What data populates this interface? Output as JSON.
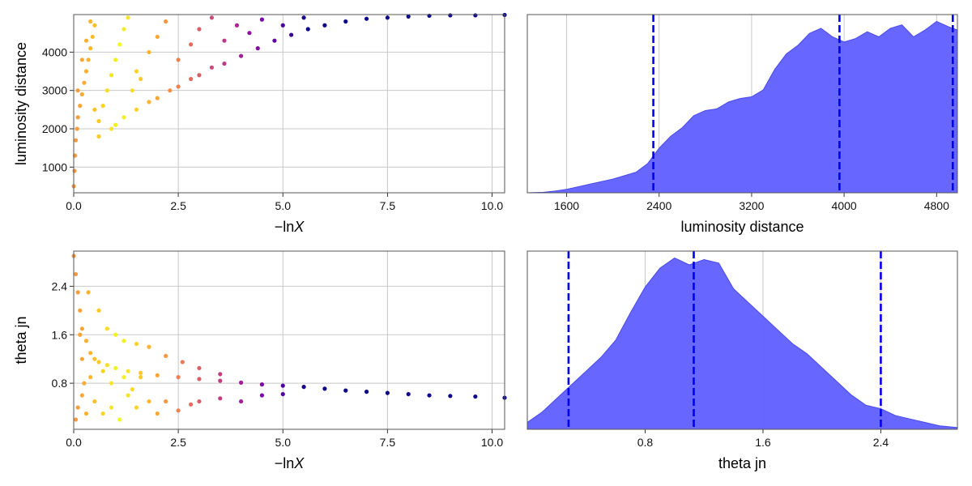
{
  "chart_data": [
    {
      "type": "scatter",
      "panel": "top-left",
      "xlabel": "−ln",
      "xlabel_var": "X",
      "ylabel": "luminosity distance",
      "xlim": [
        0,
        10.3
      ],
      "ylim": [
        330,
        4980
      ],
      "xticks": [
        0.0,
        2.5,
        5.0,
        7.5,
        10.0
      ],
      "xtick_labels": [
        "0.0",
        "2.5",
        "5.0",
        "7.5",
        "10.0"
      ],
      "yticks": [
        1000,
        2000,
        3000,
        4000
      ],
      "ytick_labels": [
        "1000",
        "2000",
        "3000",
        "4000"
      ],
      "grid": true,
      "colormap": "plasma",
      "points": [
        [
          0.0,
          500
        ],
        [
          0.02,
          900
        ],
        [
          0.03,
          1300
        ],
        [
          0.05,
          1700
        ],
        [
          0.08,
          2000
        ],
        [
          0.1,
          2300
        ],
        [
          0.15,
          2600
        ],
        [
          0.2,
          2900
        ],
        [
          0.25,
          3200
        ],
        [
          0.3,
          3500
        ],
        [
          0.35,
          3800
        ],
        [
          0.4,
          4100
        ],
        [
          0.45,
          4400
        ],
        [
          0.5,
          4700
        ],
        [
          0.1,
          3000
        ],
        [
          0.2,
          3800
        ],
        [
          0.3,
          4300
        ],
        [
          0.4,
          4800
        ],
        [
          0.6,
          2200
        ],
        [
          0.7,
          2600
        ],
        [
          0.8,
          3000
        ],
        [
          0.9,
          3400
        ],
        [
          1.0,
          3800
        ],
        [
          1.1,
          4200
        ],
        [
          1.2,
          4600
        ],
        [
          1.3,
          4900
        ],
        [
          0.9,
          2000
        ],
        [
          1.0,
          2100
        ],
        [
          1.2,
          2300
        ],
        [
          1.5,
          2500
        ],
        [
          1.8,
          2700
        ],
        [
          2.0,
          2800
        ],
        [
          2.3,
          3000
        ],
        [
          2.5,
          3100
        ],
        [
          2.8,
          3300
        ],
        [
          3.0,
          3400
        ],
        [
          3.3,
          3600
        ],
        [
          3.6,
          3700
        ],
        [
          4.0,
          3900
        ],
        [
          4.4,
          4100
        ],
        [
          4.8,
          4300
        ],
        [
          5.2,
          4450
        ],
        [
          5.6,
          4600
        ],
        [
          6.0,
          4700
        ],
        [
          6.5,
          4800
        ],
        [
          7.0,
          4870
        ],
        [
          7.5,
          4900
        ],
        [
          8.0,
          4930
        ],
        [
          8.5,
          4950
        ],
        [
          9.0,
          4960
        ],
        [
          9.6,
          4960
        ],
        [
          10.3,
          4970
        ],
        [
          1.5,
          3500
        ],
        [
          1.8,
          4000
        ],
        [
          2.0,
          4400
        ],
        [
          2.2,
          4800
        ],
        [
          2.5,
          3800
        ],
        [
          2.8,
          4200
        ],
        [
          3.0,
          4600
        ],
        [
          3.3,
          4900
        ],
        [
          3.6,
          4300
        ],
        [
          3.9,
          4700
        ],
        [
          4.2,
          4500
        ],
        [
          4.5,
          4850
        ],
        [
          5.0,
          4700
        ],
        [
          5.5,
          4900
        ],
        [
          1.4,
          3000
        ],
        [
          1.6,
          3300
        ],
        [
          0.6,
          1800
        ],
        [
          0.5,
          2500
        ]
      ]
    },
    {
      "type": "area",
      "panel": "top-right",
      "xlabel": "luminosity distance",
      "xlim": [
        1260,
        4980
      ],
      "ylim": [
        0,
        1.04
      ],
      "xticks": [
        1600,
        2400,
        3200,
        4000,
        4800
      ],
      "xtick_labels": [
        "1600",
        "2400",
        "3200",
        "4000",
        "4800"
      ],
      "grid": true,
      "fill_color": "#6464ff",
      "quantile_lines": [
        2350,
        3960,
        4940
      ],
      "quantile_color": "#0000ee",
      "x": [
        1260,
        1400,
        1500,
        1600,
        1700,
        1800,
        1900,
        2000,
        2100,
        2200,
        2300,
        2400,
        2500,
        2600,
        2700,
        2800,
        2900,
        3000,
        3100,
        3200,
        3300,
        3400,
        3500,
        3600,
        3700,
        3800,
        3900,
        4000,
        4100,
        4200,
        4300,
        4400,
        4500,
        4600,
        4700,
        4800,
        4900,
        4980
      ],
      "y": [
        0.0,
        0.003,
        0.01,
        0.02,
        0.035,
        0.05,
        0.065,
        0.08,
        0.1,
        0.12,
        0.17,
        0.26,
        0.33,
        0.38,
        0.45,
        0.48,
        0.49,
        0.53,
        0.55,
        0.56,
        0.6,
        0.72,
        0.81,
        0.86,
        0.93,
        0.96,
        0.91,
        0.88,
        0.9,
        0.94,
        0.91,
        0.96,
        0.98,
        0.91,
        0.95,
        1.0,
        0.97,
        0.95
      ]
    },
    {
      "type": "scatter",
      "panel": "bottom-left",
      "xlabel": "−ln",
      "xlabel_var": "X",
      "ylabel": "theta jn",
      "xlim": [
        0,
        10.3
      ],
      "ylim": [
        0.04,
        2.98
      ],
      "xticks": [
        0.0,
        2.5,
        5.0,
        7.5,
        10.0
      ],
      "xtick_labels": [
        "0.0",
        "2.5",
        "5.0",
        "7.5",
        "10.0"
      ],
      "yticks": [
        0.8,
        1.6,
        2.4
      ],
      "ytick_labels": [
        "0.8",
        "1.6",
        "2.4"
      ],
      "grid": true,
      "colormap": "plasma",
      "points": [
        [
          0.0,
          2.9
        ],
        [
          0.05,
          2.6
        ],
        [
          0.1,
          2.3
        ],
        [
          0.15,
          2.0
        ],
        [
          0.2,
          1.7
        ],
        [
          0.3,
          1.5
        ],
        [
          0.4,
          1.3
        ],
        [
          0.5,
          1.2
        ],
        [
          0.6,
          1.15
        ],
        [
          0.8,
          1.1
        ],
        [
          1.0,
          1.05
        ],
        [
          1.3,
          1.0
        ],
        [
          1.6,
          0.97
        ],
        [
          2.0,
          0.93
        ],
        [
          2.5,
          0.9
        ],
        [
          3.0,
          0.87
        ],
        [
          3.5,
          0.84
        ],
        [
          4.0,
          0.81
        ],
        [
          4.5,
          0.78
        ],
        [
          5.0,
          0.76
        ],
        [
          5.5,
          0.74
        ],
        [
          6.0,
          0.71
        ],
        [
          6.5,
          0.68
        ],
        [
          7.0,
          0.66
        ],
        [
          7.5,
          0.64
        ],
        [
          8.0,
          0.62
        ],
        [
          8.5,
          0.6
        ],
        [
          9.0,
          0.59
        ],
        [
          9.6,
          0.58
        ],
        [
          10.3,
          0.56
        ],
        [
          0.05,
          0.2
        ],
        [
          0.1,
          0.4
        ],
        [
          0.2,
          0.6
        ],
        [
          0.3,
          0.3
        ],
        [
          0.5,
          0.5
        ],
        [
          0.7,
          0.3
        ],
        [
          0.9,
          0.4
        ],
        [
          1.1,
          0.2
        ],
        [
          1.3,
          0.6
        ],
        [
          1.5,
          0.4
        ],
        [
          1.8,
          0.5
        ],
        [
          2.0,
          0.3
        ],
        [
          2.2,
          0.5
        ],
        [
          2.5,
          0.35
        ],
        [
          2.8,
          0.45
        ],
        [
          3.0,
          0.5
        ],
        [
          3.5,
          0.55
        ],
        [
          4.0,
          0.5
        ],
        [
          4.5,
          0.6
        ],
        [
          5.0,
          0.62
        ],
        [
          0.6,
          2.0
        ],
        [
          0.8,
          1.7
        ],
        [
          1.0,
          1.6
        ],
        [
          1.2,
          1.5
        ],
        [
          1.5,
          1.45
        ],
        [
          1.8,
          1.4
        ],
        [
          2.2,
          1.25
        ],
        [
          2.6,
          1.15
        ],
        [
          3.0,
          1.05
        ],
        [
          3.5,
          0.95
        ],
        [
          0.9,
          0.8
        ],
        [
          1.2,
          0.9
        ],
        [
          1.4,
          0.7
        ],
        [
          1.6,
          0.9
        ],
        [
          0.7,
          1.0
        ],
        [
          0.4,
          0.9
        ],
        [
          0.2,
          1.2
        ],
        [
          0.15,
          1.6
        ],
        [
          0.25,
          0.8
        ],
        [
          0.35,
          2.3
        ]
      ]
    },
    {
      "type": "area",
      "panel": "bottom-right",
      "xlabel": "theta jn",
      "xlim": [
        0.0,
        2.92
      ],
      "ylim": [
        0,
        1.04
      ],
      "xticks": [
        0.8,
        1.6,
        2.4
      ],
      "xtick_labels": [
        "0.8",
        "1.6",
        "2.4"
      ],
      "grid": true,
      "fill_color": "#6464ff",
      "quantile_lines": [
        0.28,
        1.13,
        2.4
      ],
      "quantile_color": "#0000ee",
      "x": [
        0.0,
        0.1,
        0.2,
        0.3,
        0.4,
        0.5,
        0.6,
        0.7,
        0.8,
        0.9,
        1.0,
        1.1,
        1.2,
        1.3,
        1.4,
        1.5,
        1.6,
        1.7,
        1.8,
        1.9,
        2.0,
        2.1,
        2.2,
        2.3,
        2.4,
        2.5,
        2.6,
        2.7,
        2.8,
        2.92
      ],
      "y": [
        0.04,
        0.1,
        0.18,
        0.26,
        0.34,
        0.42,
        0.52,
        0.68,
        0.83,
        0.94,
        1.0,
        0.96,
        0.99,
        0.97,
        0.82,
        0.74,
        0.66,
        0.58,
        0.5,
        0.44,
        0.36,
        0.28,
        0.2,
        0.14,
        0.12,
        0.08,
        0.06,
        0.04,
        0.02,
        0.01
      ]
    }
  ]
}
